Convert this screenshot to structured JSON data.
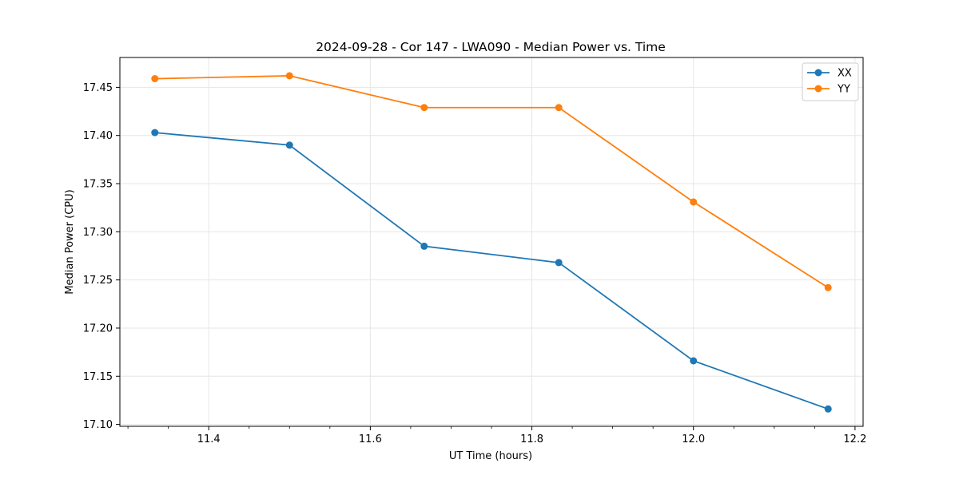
{
  "chart_data": {
    "type": "line",
    "title": "2024-09-28 - Cor 147 - LWA090 - Median Power vs. Time",
    "xlabel": "UT Time (hours)",
    "ylabel": "Median Power (CPU)",
    "x": [
      11.3333,
      11.5,
      11.6667,
      11.8333,
      12.0,
      12.1667
    ],
    "xlim": [
      11.29,
      12.21
    ],
    "ylim": [
      17.098,
      17.481
    ],
    "xticks": [
      11.4,
      11.6,
      11.8,
      12.0,
      12.2
    ],
    "xtick_labels": [
      "11.4",
      "11.6",
      "11.8",
      "12.0",
      "12.2"
    ],
    "yticks": [
      17.1,
      17.15,
      17.2,
      17.25,
      17.3,
      17.35,
      17.4,
      17.45
    ],
    "ytick_labels": [
      "17.10",
      "17.15",
      "17.20",
      "17.25",
      "17.30",
      "17.35",
      "17.40",
      "17.45"
    ],
    "grid": true,
    "legend_position": "top-right",
    "series": [
      {
        "name": "XX",
        "color": "#1f77b4",
        "marker": "circle",
        "values": [
          17.403,
          17.39,
          17.285,
          17.268,
          17.166,
          17.116
        ]
      },
      {
        "name": "YY",
        "color": "#ff7f0e",
        "marker": "circle",
        "values": [
          17.459,
          17.462,
          17.429,
          17.429,
          17.331,
          17.242
        ]
      }
    ]
  }
}
